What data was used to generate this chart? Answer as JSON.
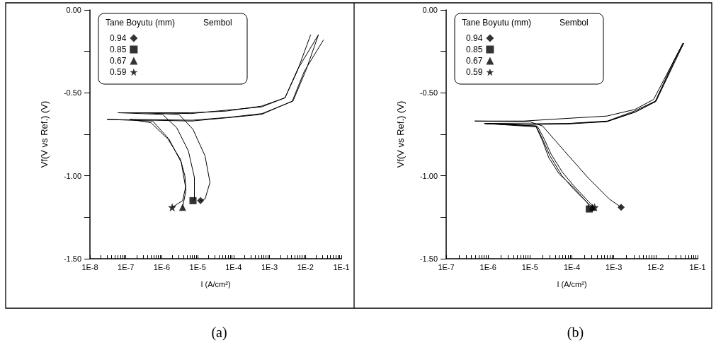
{
  "chart_data": [
    {
      "type": "line",
      "title": "(a)",
      "xlabel": "I (A/cm²)",
      "ylabel": "Vf(V vs Ref.) (V)",
      "legend_title": "Tane Boyutu (mm)",
      "annotations": [
        "Sembol"
      ],
      "log": "x",
      "legend": "top left",
      "xlim": [
        1e-08,
        0.1
      ],
      "ylim": [
        -1.5,
        0
      ],
      "xticks": [
        {
          "value": 1e-08,
          "label": "1E-8"
        },
        {
          "value": 2e-08,
          "label": null
        },
        {
          "value": 3e-08,
          "label": null
        },
        {
          "value": 4e-08,
          "label": null
        },
        {
          "value": 5e-08,
          "label": null
        },
        {
          "value": 6e-08,
          "label": null
        },
        {
          "value": 7e-08,
          "label": null
        },
        {
          "value": 8e-08,
          "label": null
        },
        {
          "value": 9e-08,
          "label": null
        },
        {
          "value": 1e-07,
          "label": "1E-7"
        },
        {
          "value": 2e-07,
          "label": null
        },
        {
          "value": 3e-07,
          "label": null
        },
        {
          "value": 4e-07,
          "label": null
        },
        {
          "value": 5e-07,
          "label": null
        },
        {
          "value": 6e-07,
          "label": null
        },
        {
          "value": 7e-07,
          "label": null
        },
        {
          "value": 8e-07,
          "label": null
        },
        {
          "value": 9e-07,
          "label": null
        },
        {
          "value": 1e-06,
          "label": "1E-6"
        },
        {
          "value": 2e-06,
          "label": null
        },
        {
          "value": 3e-06,
          "label": null
        },
        {
          "value": 4e-06,
          "label": null
        },
        {
          "value": 5e-06,
          "label": null
        },
        {
          "value": 6e-06,
          "label": null
        },
        {
          "value": 7e-06,
          "label": null
        },
        {
          "value": 8e-06,
          "label": null
        },
        {
          "value": 9e-06,
          "label": null
        },
        {
          "value": 1e-05,
          "label": "1E-5"
        },
        {
          "value": 2e-05,
          "label": null
        },
        {
          "value": 3e-05,
          "label": null
        },
        {
          "value": 4e-05,
          "label": null
        },
        {
          "value": 5e-05,
          "label": null
        },
        {
          "value": 6e-05,
          "label": null
        },
        {
          "value": 7e-05,
          "label": null
        },
        {
          "value": 8e-05,
          "label": null
        },
        {
          "value": 9e-05,
          "label": null
        },
        {
          "value": 0.0001,
          "label": "1E-4"
        },
        {
          "value": 0.0002,
          "label": null
        },
        {
          "value": 0.0003,
          "label": null
        },
        {
          "value": 0.0004,
          "label": null
        },
        {
          "value": 0.0005,
          "label": null
        },
        {
          "value": 0.0006,
          "label": null
        },
        {
          "value": 0.0007,
          "label": null
        },
        {
          "value": 0.0008,
          "label": null
        },
        {
          "value": 0.0009,
          "label": null
        },
        {
          "value": 0.001,
          "label": "1E-3"
        },
        {
          "value": 0.002,
          "label": null
        },
        {
          "value": 0.003,
          "label": null
        },
        {
          "value": 0.004,
          "label": null
        },
        {
          "value": 0.005,
          "label": null
        },
        {
          "value": 0.006,
          "label": null
        },
        {
          "value": 0.007,
          "label": null
        },
        {
          "value": 0.008,
          "label": null
        },
        {
          "value": 0.009,
          "label": null
        },
        {
          "value": 0.01,
          "label": "1E-2"
        },
        {
          "value": 0.02,
          "label": null
        },
        {
          "value": 0.03,
          "label": null
        },
        {
          "value": 0.04,
          "label": null
        },
        {
          "value": 0.05,
          "label": null
        },
        {
          "value": 0.06,
          "label": null
        },
        {
          "value": 0.07,
          "label": null
        },
        {
          "value": 0.08,
          "label": null
        },
        {
          "value": 0.09,
          "label": null
        },
        {
          "value": 0.1,
          "label": "1E-1"
        }
      ],
      "yticks": [
        {
          "value": 0,
          "label": "0.00"
        },
        {
          "value": -0.25,
          "label": null
        },
        {
          "value": -0.5,
          "label": "-0.50"
        },
        {
          "value": -0.75,
          "label": null
        },
        {
          "value": -1,
          "label": "-1.00"
        },
        {
          "value": -1.25,
          "label": null
        },
        {
          "value": -1.5,
          "label": "-1.50"
        }
      ],
      "series": [
        {
          "color": "#000000",
          "x": [
            1.2e-05,
            1.6e-05,
            2.2e-05,
            1.6e-05,
            7.4e-06,
            3e-06,
            2.8e-07,
            6.5e-06,
            6e-05,
            0.0006,
            0.0027,
            0.006,
            0.023
          ],
          "values": [
            -1.15,
            -1.14,
            -1.04,
            -0.88,
            -0.72,
            -0.63,
            -0.62,
            -0.625,
            -0.605,
            -0.585,
            -0.53,
            -0.36,
            -0.15
          ]
        },
        {
          "color": "#000000",
          "x": [
            7.4e-06,
            8.1e-06,
            8.1e-06,
            5.5e-06,
            2.6e-06,
            1.05e-06,
            6e-08,
            6.5e-06,
            6.2e-05,
            0.0006,
            0.0027,
            0.0059,
            0.014
          ],
          "values": [
            -1.15,
            -1.14,
            -1.01,
            -0.85,
            -0.71,
            -0.63,
            -0.62,
            -0.62,
            -0.61,
            -0.58,
            -0.53,
            -0.37,
            -0.15
          ]
        },
        {
          "color": "#000000",
          "x": [
            3.8e-06,
            4.7e-06,
            4.4e-06,
            3.3e-06,
            1.5e-06,
            5e-07,
            1.3e-07,
            7e-06,
            7e-05,
            0.00062,
            0.0045,
            0.0105,
            0.023
          ],
          "values": [
            -1.19,
            -1.09,
            -1.0,
            -0.9,
            -0.78,
            -0.68,
            -0.66,
            -0.665,
            -0.648,
            -0.625,
            -0.55,
            -0.36,
            -0.15
          ]
        },
        {
          "color": "#000000",
          "x": [
            1.95e-06,
            3.8e-06,
            4.6e-06,
            3.5e-06,
            1.6e-06,
            5.6e-07,
            3e-08,
            6.9e-06,
            6.8e-05,
            0.0006,
            0.0043,
            0.0093,
            0.032
          ],
          "values": [
            -1.19,
            -1.15,
            -1.07,
            -0.92,
            -0.78,
            -0.67,
            -0.66,
            -0.67,
            -0.65,
            -0.63,
            -0.55,
            -0.37,
            -0.18
          ]
        },
        {
          "type": "scatter",
          "name": "0.94",
          "color": "#000000",
          "marker": "diamond",
          "x": [
            1.2e-05
          ],
          "values": [
            -1.15
          ]
        },
        {
          "type": "scatter",
          "name": "0.85",
          "color": "#000000",
          "marker": "square",
          "x": [
            7.4e-06
          ],
          "values": [
            -1.15
          ]
        },
        {
          "type": "scatter",
          "name": "0.67",
          "color": "#000000",
          "marker": "triangle",
          "x": [
            3.8e-06
          ],
          "values": [
            -1.19
          ]
        },
        {
          "type": "scatter",
          "name": "0.59",
          "color": "#000000",
          "marker": "star",
          "x": [
            1.95e-06
          ],
          "values": [
            -1.19
          ]
        }
      ]
    },
    {
      "type": "line",
      "title": "(b)",
      "xlabel": "I (A/cm²)",
      "ylabel": "Vf(V vs Ref.) (V)",
      "legend_title": "Tane Boyutu (mm)",
      "annotations": [
        "Sembol"
      ],
      "log": "x",
      "legend": "top left",
      "xlim": [
        1e-07,
        0.1
      ],
      "ylim": [
        -1.5,
        0
      ],
      "xticks": [
        {
          "value": 1e-07,
          "label": "1E-7"
        },
        {
          "value": 2e-07,
          "label": null
        },
        {
          "value": 3e-07,
          "label": null
        },
        {
          "value": 4e-07,
          "label": null
        },
        {
          "value": 5e-07,
          "label": null
        },
        {
          "value": 6e-07,
          "label": null
        },
        {
          "value": 7e-07,
          "label": null
        },
        {
          "value": 8e-07,
          "label": null
        },
        {
          "value": 9e-07,
          "label": null
        },
        {
          "value": 1e-06,
          "label": "1E-6"
        },
        {
          "value": 2e-06,
          "label": null
        },
        {
          "value": 3e-06,
          "label": null
        },
        {
          "value": 4e-06,
          "label": null
        },
        {
          "value": 5e-06,
          "label": null
        },
        {
          "value": 6e-06,
          "label": null
        },
        {
          "value": 7e-06,
          "label": null
        },
        {
          "value": 8e-06,
          "label": null
        },
        {
          "value": 9e-06,
          "label": null
        },
        {
          "value": 1e-05,
          "label": "1E-5"
        },
        {
          "value": 2e-05,
          "label": null
        },
        {
          "value": 3e-05,
          "label": null
        },
        {
          "value": 4e-05,
          "label": null
        },
        {
          "value": 5e-05,
          "label": null
        },
        {
          "value": 6e-05,
          "label": null
        },
        {
          "value": 7e-05,
          "label": null
        },
        {
          "value": 8e-05,
          "label": null
        },
        {
          "value": 9e-05,
          "label": null
        },
        {
          "value": 0.0001,
          "label": "1E-4"
        },
        {
          "value": 0.0002,
          "label": null
        },
        {
          "value": 0.0003,
          "label": null
        },
        {
          "value": 0.0004,
          "label": null
        },
        {
          "value": 0.0005,
          "label": null
        },
        {
          "value": 0.0006,
          "label": null
        },
        {
          "value": 0.0007,
          "label": null
        },
        {
          "value": 0.0008,
          "label": null
        },
        {
          "value": 0.0009,
          "label": null
        },
        {
          "value": 0.001,
          "label": "1E-3"
        },
        {
          "value": 0.002,
          "label": null
        },
        {
          "value": 0.003,
          "label": null
        },
        {
          "value": 0.004,
          "label": null
        },
        {
          "value": 0.005,
          "label": null
        },
        {
          "value": 0.006,
          "label": null
        },
        {
          "value": 0.007,
          "label": null
        },
        {
          "value": 0.008,
          "label": null
        },
        {
          "value": 0.009,
          "label": null
        },
        {
          "value": 0.01,
          "label": "1E-2"
        },
        {
          "value": 0.02,
          "label": null
        },
        {
          "value": 0.03,
          "label": null
        },
        {
          "value": 0.04,
          "label": null
        },
        {
          "value": 0.05,
          "label": null
        },
        {
          "value": 0.06,
          "label": null
        },
        {
          "value": 0.07,
          "label": null
        },
        {
          "value": 0.08,
          "label": null
        },
        {
          "value": 0.09,
          "label": null
        },
        {
          "value": 0.1,
          "label": "1E-1"
        }
      ],
      "yticks": [
        {
          "value": 0,
          "label": "0.00"
        },
        {
          "value": -0.25,
          "label": null
        },
        {
          "value": -0.5,
          "label": "-0.50"
        },
        {
          "value": -0.75,
          "label": null
        },
        {
          "value": -1,
          "label": "-1.00"
        },
        {
          "value": -1.25,
          "label": null
        },
        {
          "value": -1.5,
          "label": "-1.50"
        }
      ],
      "series": [
        {
          "color": "#000000",
          "x": [
            0.0015,
            0.00078,
            0.00024,
            6.6e-05,
            2e-05,
            1e-05,
            4.8e-07,
            7.2e-06,
            6.6e-05,
            0.00068,
            0.0032,
            0.0089,
            0.028,
            0.045
          ],
          "values": [
            -1.19,
            -1.14,
            -1.01,
            -0.85,
            -0.7,
            -0.675,
            -0.67,
            -0.67,
            -0.655,
            -0.64,
            -0.6,
            -0.54,
            -0.3,
            -0.2
          ]
        },
        {
          "color": "#000000",
          "x": [
            0.00026,
            0.00024,
            0.00011,
            5.8e-05,
            3e-05,
            2e-05,
            1.4e-05,
            8.1e-07,
            1e-05,
            7.4e-05,
            0.00068,
            0.0032,
            0.01,
            0.028,
            0.046
          ],
          "values": [
            -1.2,
            -1.165,
            -1.08,
            -1.0,
            -0.88,
            -0.78,
            -0.7,
            -0.685,
            -0.69,
            -0.688,
            -0.674,
            -0.617,
            -0.553,
            -0.31,
            -0.2
          ]
        },
        {
          "color": "#000000",
          "x": [
            0.00031,
            0.00025,
            0.0001,
            5e-05,
            2.8e-05,
            2e-05,
            1.4e-05,
            8.5e-07,
            1e-05,
            7.6e-05,
            0.0007,
            0.0033,
            0.0102,
            0.029,
            0.047
          ],
          "values": [
            -1.19,
            -1.17,
            -1.06,
            -0.99,
            -0.89,
            -0.79,
            -0.705,
            -0.685,
            -0.688,
            -0.686,
            -0.672,
            -0.614,
            -0.55,
            -0.31,
            -0.2
          ]
        },
        {
          "color": "#000000",
          "x": [
            0.00035,
            0.00026,
            0.00012,
            6e-05,
            3.2e-05,
            2.2e-05,
            1.5e-05,
            9e-07,
            1.1e-05,
            7.8e-05,
            0.0007,
            0.0031,
            0.0098,
            0.028,
            0.045
          ],
          "values": [
            -1.19,
            -1.16,
            -1.07,
            -0.98,
            -0.87,
            -0.78,
            -0.7,
            -0.685,
            -0.687,
            -0.685,
            -0.67,
            -0.61,
            -0.55,
            -0.3,
            -0.2
          ]
        },
        {
          "type": "scatter",
          "name": "0.94",
          "color": "#000000",
          "marker": "diamond",
          "x": [
            0.0015
          ],
          "values": [
            -1.19
          ]
        },
        {
          "type": "scatter",
          "name": "0.85",
          "color": "#000000",
          "marker": "square",
          "x": [
            0.00026
          ],
          "values": [
            -1.2
          ]
        },
        {
          "type": "scatter",
          "name": "0.67",
          "color": "#000000",
          "marker": "triangle",
          "x": [
            0.00031
          ],
          "values": [
            -1.19
          ]
        },
        {
          "type": "scatter",
          "name": "0.59",
          "color": "#000000",
          "marker": "star",
          "x": [
            0.00035
          ],
          "values": [
            -1.19
          ]
        }
      ]
    }
  ]
}
